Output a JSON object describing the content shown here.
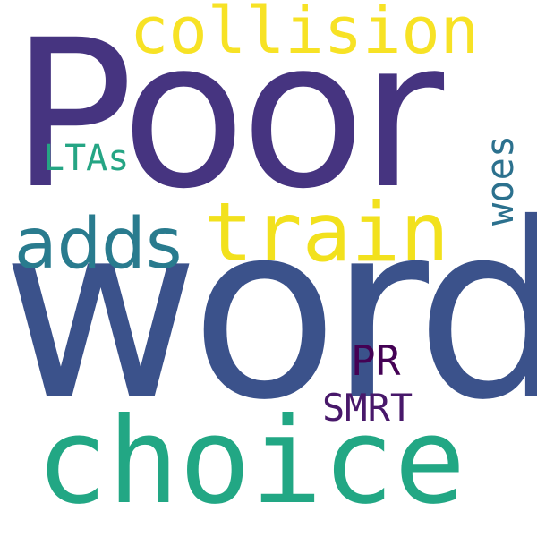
{
  "words": [
    {
      "id": "poor",
      "text": "Poor",
      "color": "#463480"
    },
    {
      "id": "word",
      "text": "word",
      "color": "#3b528b"
    },
    {
      "id": "choice",
      "text": "choice",
      "color": "#22a784"
    },
    {
      "id": "train",
      "text": "train",
      "color": "#f2e11d"
    },
    {
      "id": "collision",
      "text": "collision",
      "color": "#f7e225"
    },
    {
      "id": "adds",
      "text": "adds",
      "color": "#297b8e"
    },
    {
      "id": "ltas",
      "text": "LTAs",
      "color": "#25a584"
    },
    {
      "id": "woes",
      "text": "woes",
      "color": "#2c718e"
    },
    {
      "id": "pr",
      "text": "PR",
      "color": "#440154"
    },
    {
      "id": "smrt",
      "text": "SMRT",
      "color": "#48186a"
    }
  ]
}
